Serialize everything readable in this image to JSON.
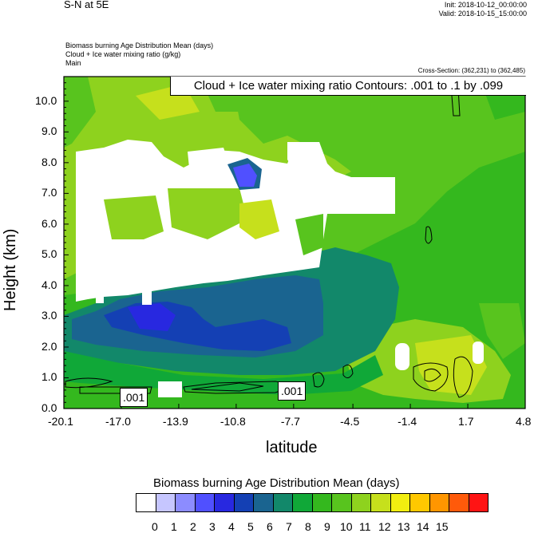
{
  "header": {
    "plot_title": "S-N at 5E",
    "init": "Init: 2018-10-12_00:00:00",
    "valid": "Valid: 2018-10-15_15:00:00",
    "field1": "Biomass burning Age Distribution Mean   (days)",
    "field2": "Cloud + Ice water mixing ratio   (g/kg)",
    "field3": "Main",
    "cross_section": "Cross-Section: (362,231) to (362,485)"
  },
  "contour_info": "Cloud + Ice water mixing ratio Contours: .001 to .1 by .099",
  "contour_labels": [
    ".001",
    ".001"
  ],
  "colorbar": {
    "title": "Biomass burning Age Distribution Mean  (days)",
    "labels": [
      "0",
      "1",
      "2",
      "3",
      "4",
      "5",
      "6",
      "7",
      "8",
      "9",
      "10",
      "11",
      "12",
      "13",
      "14",
      "15"
    ],
    "colors": [
      "#ffffff",
      "#c6c6ff",
      "#8c8cff",
      "#5050ff",
      "#2828e0",
      "#1440b4",
      "#1a6490",
      "#12886a",
      "#10a838",
      "#34b81e",
      "#58c41e",
      "#8ed21e",
      "#c6e01c",
      "#f2ee10",
      "#ffc800",
      "#ff9600",
      "#ff5a0a",
      "#ff1414"
    ]
  },
  "chart_data": {
    "type": "heatmap",
    "title": "S-N at 5E",
    "xlabel": "latitude",
    "ylabel": "Height (km)",
    "x_ticks": [
      "-20.1",
      "-17.0",
      "-13.9",
      "-10.8",
      "-7.7",
      "-4.5",
      "-1.4",
      "1.7",
      "4.8"
    ],
    "y_ticks": [
      "0.0",
      "1.0",
      "2.0",
      "3.0",
      "4.0",
      "5.0",
      "6.0",
      "7.0",
      "8.0",
      "9.0",
      "10.0"
    ],
    "xlim": [
      -20.1,
      4.8
    ],
    "ylim": [
      0.0,
      10.8
    ],
    "fill_variable": "Biomass burning Age Distribution Mean (days)",
    "contour_variable": "Cloud + Ice water mixing ratio (g/kg)",
    "contour_levels": [
      0.001,
      0.1
    ],
    "regions": [
      {
        "name": "background",
        "value": 9
      },
      {
        "name": "upper-green",
        "value": 10
      },
      {
        "name": "light-green-west",
        "value": 11
      },
      {
        "name": "dark-green-band",
        "value": 7
      },
      {
        "name": "teal-core",
        "value": 6
      },
      {
        "name": "blue-core",
        "value": 4
      },
      {
        "name": "blue-spot-8km",
        "value": 3
      },
      {
        "name": "yellow-green-east",
        "value": 12
      },
      {
        "name": "white-no-data",
        "value": 0
      }
    ]
  }
}
